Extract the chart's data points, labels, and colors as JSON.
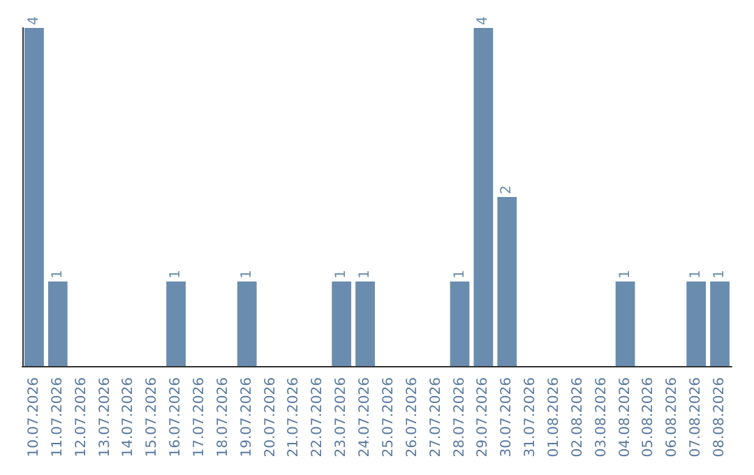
{
  "chart_data": {
    "type": "bar",
    "categories": [
      "10.07.2026",
      "11.07.2026",
      "12.07.2026",
      "13.07.2026",
      "14.07.2026",
      "15.07.2026",
      "16.07.2026",
      "17.07.2026",
      "18.07.2026",
      "19.07.2026",
      "20.07.2026",
      "21.07.2026",
      "22.07.2026",
      "23.07.2026",
      "24.07.2026",
      "25.07.2026",
      "26.07.2026",
      "27.07.2026",
      "28.07.2026",
      "29.07.2026",
      "30.07.2026",
      "31.07.2026",
      "01.08.2026",
      "02.08.2026",
      "03.08.2026",
      "04.08.2026",
      "05.08.2026",
      "06.08.2026",
      "07.08.2026",
      "08.08.2026"
    ],
    "values": [
      4,
      1,
      0,
      0,
      0,
      0,
      1,
      0,
      0,
      1,
      0,
      0,
      0,
      1,
      1,
      0,
      0,
      0,
      1,
      4,
      2,
      0,
      0,
      0,
      0,
      1,
      0,
      0,
      1,
      1
    ],
    "value_labels": [
      "4",
      "1",
      null,
      null,
      null,
      null,
      "1",
      null,
      null,
      "1",
      null,
      null,
      null,
      "1",
      "1",
      null,
      null,
      null,
      "1",
      "4",
      "2",
      null,
      null,
      null,
      null,
      "1",
      null,
      null,
      "1",
      "1"
    ],
    "color": "#6a8caf",
    "tick_labels": "x"
  }
}
